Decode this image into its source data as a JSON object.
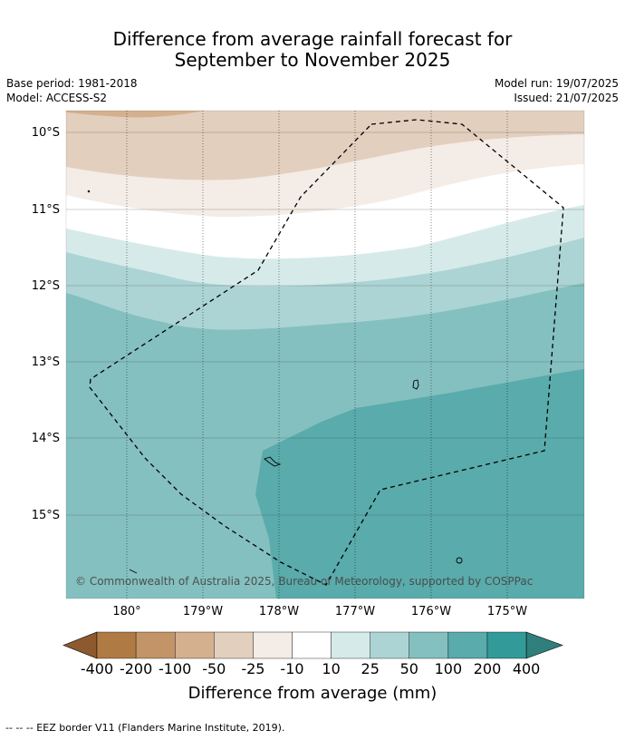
{
  "header": {
    "title_line1": "Difference from average rainfall forecast for",
    "title_line2": "September to November 2025",
    "base_period": "Base period: 1981-2018",
    "model": "Model: ACCESS-S2",
    "model_run": "Model run: 19/07/2025",
    "issued": "Issued: 21/07/2025"
  },
  "map": {
    "lat_labels": [
      "10°S",
      "11°S",
      "12°S",
      "13°S",
      "14°S",
      "15°S"
    ],
    "lon_labels": [
      "180°",
      "179°W",
      "178°W",
      "177°W",
      "176°W",
      "175°W"
    ],
    "copyright": "© Commonwealth of Australia 2025, Bureau of Meteorology, supported by COSPPac"
  },
  "legend": {
    "title": "Difference from average (mm)",
    "tick_labels": [
      "-400",
      "-200",
      "-100",
      "-50",
      "-25",
      "-10",
      "10",
      "25",
      "50",
      "100",
      "200",
      "400"
    ],
    "colors": [
      "#8c5a2e",
      "#b07a44",
      "#c29468",
      "#d4b08e",
      "#e3cfbd",
      "#f4ece6",
      "#ffffff",
      "#d6eaea",
      "#acd4d4",
      "#84c0bf",
      "#5aabab",
      "#329b99",
      "#2f7f7d"
    ]
  },
  "footer": {
    "eez_note": "--  --  -- EEZ border V11 (Flanders Marine Institute, 2019)."
  }
}
